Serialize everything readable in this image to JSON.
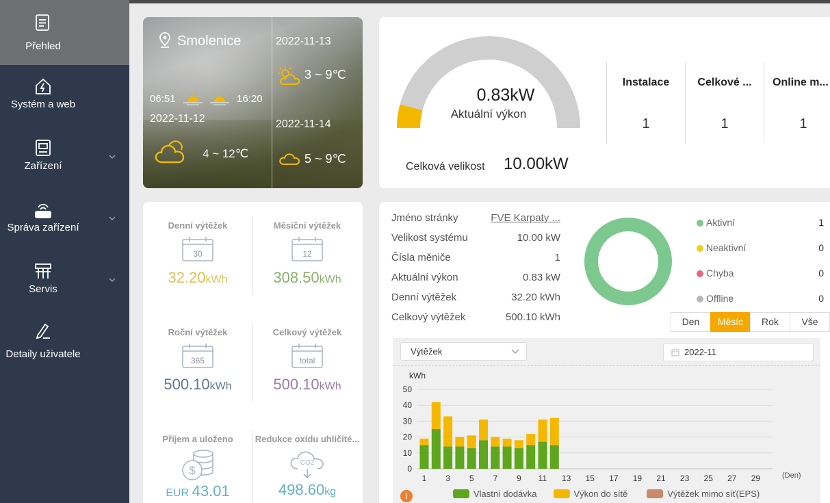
{
  "sidebar": {
    "items": [
      {
        "label": "Přehled",
        "icon": "document-icon",
        "active": true
      },
      {
        "label": "Systém a web",
        "icon": "home-bolt-icon"
      },
      {
        "label": "Zařízení",
        "icon": "device-icon",
        "expandable": true
      },
      {
        "label": "Správa zařízení",
        "icon": "router-icon",
        "expandable": true
      },
      {
        "label": "Servis",
        "icon": "service-icon",
        "expandable": true
      },
      {
        "label": "Detaily uživatele",
        "icon": "edit-user-icon"
      }
    ]
  },
  "weather": {
    "location": "Smolenice",
    "sunrise": "06:51",
    "sunset": "16:20",
    "today_date": "2022-11-12",
    "today_temp": "4 ~ 12℃",
    "forecast": [
      {
        "date": "2022-11-13",
        "temp": "3 ~ 9℃",
        "icon": "partly-sunny-icon"
      },
      {
        "date": "2022-11-14",
        "temp": "5 ~ 9℃",
        "icon": "cloud-icon"
      }
    ]
  },
  "power": {
    "current_value": "0.83kW",
    "current_label": "Aktuální výkon",
    "gauge_fraction": 0.083,
    "total_size_label": "Celková velikost",
    "total_size_value": "10.00kW",
    "stats": [
      {
        "title": "Instalace",
        "value": "1"
      },
      {
        "title": "Celkové ...",
        "value": "1"
      },
      {
        "title": "Online m...",
        "value": "1"
      }
    ]
  },
  "yields": [
    {
      "label": "Denní výtěžek",
      "icon_text": "30",
      "value": "32.20",
      "unit": "kWh",
      "color": "#e3c15b"
    },
    {
      "label": "Měsíční výtěžek",
      "icon_text": "12",
      "value": "308.50",
      "unit": "kWh",
      "color": "#8bb26a"
    },
    {
      "label": "Roční výtěžek",
      "icon_text": "365",
      "value": "500.10",
      "unit": "kWh",
      "color": "#5f7892"
    },
    {
      "label": "Celkový výtěžek",
      "icon_text": "total",
      "value": "500.10",
      "unit": "kWh",
      "color": "#9b7ca6"
    },
    {
      "label": "Příjem a uloženo",
      "icon_text": "",
      "prefix": "EUR ",
      "value": "43.01",
      "unit": "",
      "color": "#5fb3c7"
    },
    {
      "label": "Redukce oxidu uhličité...",
      "icon_text": "CO2",
      "value": "498.60",
      "unit": "kg",
      "color": "#5fb3c7"
    }
  ],
  "site_info": [
    {
      "key": "Jméno stránky",
      "value": "FVE Karpaty ...",
      "link": true
    },
    {
      "key": "Velikost systému",
      "value": "10.00 kW"
    },
    {
      "key": "Čísla měniče",
      "value": "1"
    },
    {
      "key": "Aktuální výkon",
      "value": "0.83 kW"
    },
    {
      "key": "Denní výtěžek",
      "value": "32.20 kWh"
    },
    {
      "key": "Celkový výtěžek",
      "value": "500.10 kWh"
    }
  ],
  "status_legend": [
    {
      "label": "Aktivní",
      "count": "1",
      "color": "#7cc88f"
    },
    {
      "label": "Neaktivní",
      "count": "0",
      "color": "#f3cd1c"
    },
    {
      "label": "Chyba",
      "count": "0",
      "color": "#e8677a"
    },
    {
      "label": "Offline",
      "count": "0",
      "color": "#b8b8b8"
    }
  ],
  "period_tabs": [
    {
      "label": "Den"
    },
    {
      "label": "Měsíc",
      "active": true
    },
    {
      "label": "Rok"
    },
    {
      "label": "Vše"
    }
  ],
  "chart_controls": {
    "select_value": "Výtěžek",
    "date_value": "2022-11"
  },
  "colors": {
    "accent": "#f5a800",
    "sidebar": "#2e3a4b",
    "green": "#5da61d",
    "yellow": "#f5b800",
    "brown": "#c98a6a"
  },
  "chart_data": {
    "type": "bar",
    "stacked": true,
    "ylabel": "kWh",
    "xlabel": "(Den)",
    "ylim": [
      0,
      50
    ],
    "yticks": [
      0,
      10,
      20,
      30,
      40,
      50
    ],
    "x": [
      1,
      2,
      3,
      4,
      5,
      6,
      7,
      8,
      9,
      10,
      11,
      12,
      13,
      14,
      15,
      16,
      17,
      18,
      19,
      20,
      21,
      22,
      23,
      24,
      25,
      26,
      27,
      28,
      29,
      30
    ],
    "xtick_labels": [
      "1",
      "3",
      "5",
      "7",
      "9",
      "11",
      "13",
      "15",
      "17",
      "19",
      "21",
      "23",
      "25",
      "27",
      "29"
    ],
    "series": [
      {
        "name": "Vlastní dodávka",
        "color": "#5da61d",
        "values": [
          15,
          25,
          14,
          14,
          13,
          18,
          14,
          14,
          13,
          15,
          17,
          15,
          0,
          0,
          0,
          0,
          0,
          0,
          0,
          0,
          0,
          0,
          0,
          0,
          0,
          0,
          0,
          0,
          0,
          0
        ]
      },
      {
        "name": "Výkon do sítě",
        "color": "#f5b800",
        "values": [
          4,
          17,
          19,
          6,
          8,
          13,
          6,
          5,
          5,
          7,
          14,
          17,
          0,
          0,
          0,
          0,
          0,
          0,
          0,
          0,
          0,
          0,
          0,
          0,
          0,
          0,
          0,
          0,
          0,
          0
        ]
      },
      {
        "name": "Výtěžek mimo síť(EPS)",
        "color": "#c98a6a",
        "values": [
          0,
          0,
          0,
          0,
          0,
          0,
          0,
          0,
          0,
          0,
          0,
          0,
          0,
          0,
          0,
          0,
          0,
          0,
          0,
          0,
          0,
          0,
          0,
          0,
          0,
          0,
          0,
          0,
          0,
          0
        ]
      }
    ]
  }
}
